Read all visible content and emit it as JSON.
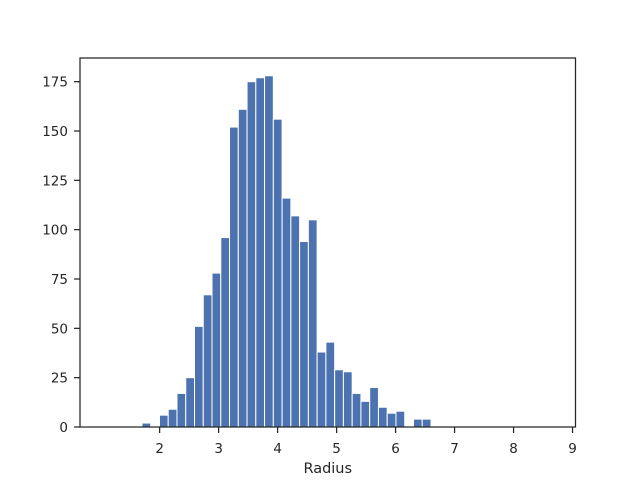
{
  "chart_data": {
    "type": "bar",
    "subtype": "histogram",
    "title": "",
    "xlabel": "Radius",
    "ylabel": "",
    "xlim": [
      0.65,
      9.05
    ],
    "ylim": [
      0,
      187
    ],
    "grid": false,
    "legend": "none",
    "bar_color": "#4c72b0",
    "edge_color": "#ffffff",
    "bin_start": 1.7,
    "bin_width": 0.1485,
    "values": [
      2,
      0,
      6,
      9,
      17,
      25,
      51,
      67,
      78,
      96,
      152,
      161,
      175,
      177,
      178,
      156,
      116,
      107,
      94,
      105,
      38,
      43,
      29,
      28,
      17,
      13,
      20,
      10,
      7,
      8,
      0,
      4,
      4
    ],
    "x_ticks": [
      2,
      3,
      4,
      5,
      6,
      7,
      8,
      9
    ],
    "x_tick_labels": [
      "2",
      "3",
      "4",
      "5",
      "6",
      "7",
      "8",
      "9"
    ],
    "y_ticks": [
      0,
      25,
      50,
      75,
      100,
      125,
      150,
      175
    ],
    "y_tick_labels": [
      "0",
      "25",
      "50",
      "75",
      "100",
      "125",
      "150",
      "175"
    ]
  }
}
